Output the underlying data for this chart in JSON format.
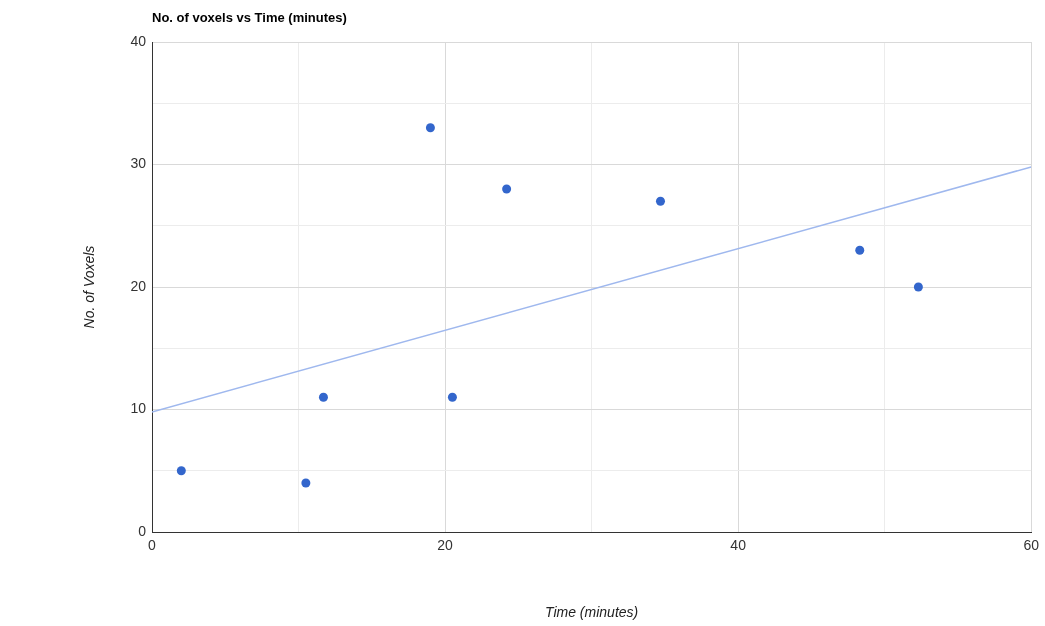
{
  "chart_data": {
    "type": "scatter",
    "title": "No. of voxels vs Time (minutes)",
    "xlabel": "Time (minutes)",
    "ylabel": "No. of Voxels",
    "xlim": [
      0,
      60
    ],
    "xticks": [
      0,
      {
        "value": 10,
        "label": null
      },
      20,
      {
        "value": 30,
        "label": null
      },
      40,
      {
        "value": 50,
        "label": null
      },
      60
    ],
    "ylim": [
      0,
      40
    ],
    "yticks": [
      0,
      {
        "value": 5,
        "label": null
      },
      10,
      {
        "value": 15,
        "label": null
      },
      20,
      {
        "value": 25,
        "label": null
      },
      30,
      {
        "value": 35,
        "label": null
      },
      40
    ],
    "grid": true,
    "legend": false,
    "marker": "circle",
    "series": [
      {
        "type": "scatter",
        "color": "#3366cc",
        "x": [
          2,
          10.5,
          11.7,
          19,
          20.5,
          24.2,
          34.7,
          48.3,
          52.3
        ],
        "values": [
          5,
          4,
          11,
          33,
          11,
          28,
          27,
          23,
          20
        ]
      },
      {
        "type": "line",
        "color": "#9fb8ee",
        "marker": "none",
        "x": [
          0,
          60
        ],
        "values": [
          9.8,
          29.8
        ]
      }
    ]
  }
}
